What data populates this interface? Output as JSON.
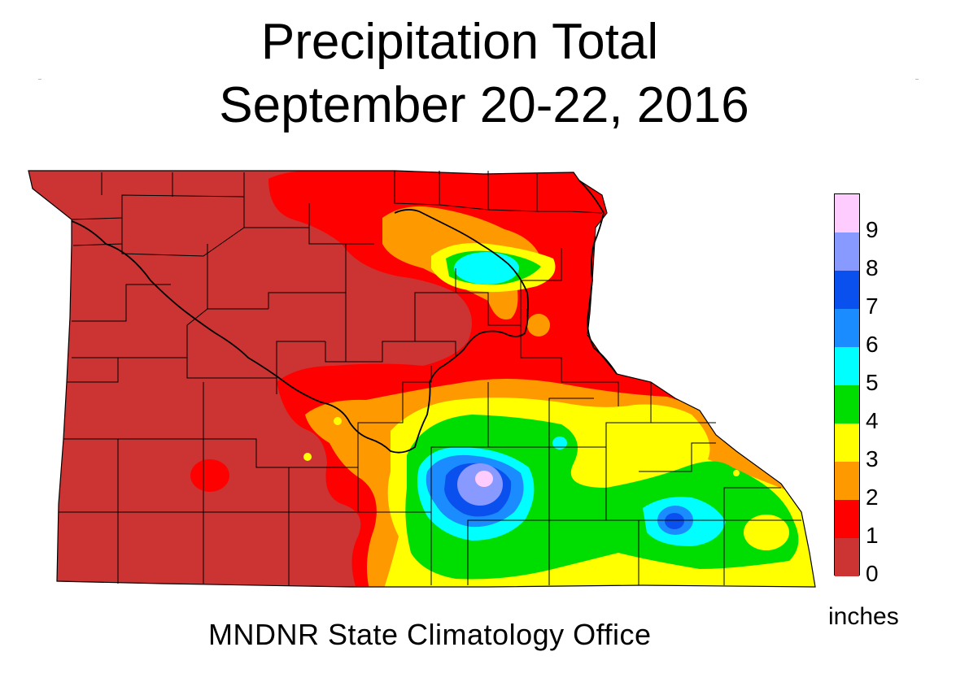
{
  "title": "Precipitation Total",
  "subtitle": "September 20-22, 2016",
  "credit": "MNDNR State Climatology Office",
  "legend": {
    "units": "inches",
    "ticks": [
      "9",
      "8",
      "7",
      "6",
      "5",
      "4",
      "3",
      "2",
      "1",
      "0"
    ],
    "bins": [
      {
        "range": "9+",
        "color": "#ffccff"
      },
      {
        "range": "8-9",
        "color": "#8899ff"
      },
      {
        "range": "7-8",
        "color": "#0a50ee"
      },
      {
        "range": "6-7",
        "color": "#1a8cff"
      },
      {
        "range": "5-6",
        "color": "#00ffff"
      },
      {
        "range": "4-5",
        "color": "#00dd00"
      },
      {
        "range": "3-4",
        "color": "#ffff00"
      },
      {
        "range": "2-3",
        "color": "#ff9900"
      },
      {
        "range": "1-2",
        "color": "#ff0000"
      },
      {
        "range": "0-1",
        "color": "#cc3333"
      }
    ]
  },
  "map": {
    "region": "southern Minnesota counties",
    "boundary_color": "#000000"
  }
}
